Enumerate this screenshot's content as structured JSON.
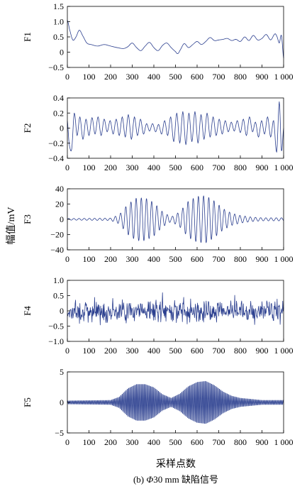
{
  "figure": {
    "caption_prefix": "(b) ",
    "caption_symbol": "Φ",
    "caption_rest": "30 mm 缺陷信号",
    "shared_ylabel": "幅值/mV",
    "shared_xlabel": "采样点数",
    "series_color": "#2b3f8f"
  },
  "chart_data": [
    {
      "type": "line",
      "panel_label": "F1",
      "xlim": [
        0,
        1000
      ],
      "ylim": [
        -0.5,
        1.5
      ],
      "xticks": [
        0,
        100,
        200,
        300,
        400,
        500,
        600,
        700,
        800,
        900,
        1000
      ],
      "xtick_labels": [
        "0",
        "100",
        "200",
        "300",
        "400",
        "500",
        "600",
        "700",
        "800",
        "900",
        "1 000"
      ],
      "yticks": [
        -0.5,
        0,
        0.5,
        1.0,
        1.5
      ],
      "ytick_labels": [
        "−0.5",
        "0",
        "0.5",
        "1.0",
        "1.5"
      ],
      "x": [
        0,
        10,
        25,
        40,
        55,
        70,
        90,
        110,
        140,
        170,
        200,
        230,
        260,
        280,
        300,
        320,
        340,
        360,
        380,
        400,
        420,
        440,
        460,
        480,
        500,
        510,
        520,
        540,
        560,
        580,
        600,
        620,
        640,
        660,
        680,
        700,
        720,
        740,
        760,
        780,
        800,
        820,
        840,
        860,
        880,
        900,
        920,
        940,
        960,
        970,
        980,
        990,
        1000
      ],
      "y": [
        1.05,
        0.75,
        0.4,
        0.5,
        0.72,
        0.55,
        0.3,
        0.25,
        0.2,
        0.25,
        0.2,
        0.15,
        0.12,
        0.18,
        0.3,
        0.15,
        0.05,
        0.2,
        0.32,
        0.15,
        0.05,
        0.22,
        0.3,
        0.15,
        0.02,
        -0.05,
        0.05,
        0.28,
        0.15,
        0.25,
        0.35,
        0.25,
        0.35,
        0.48,
        0.38,
        0.4,
        0.42,
        0.45,
        0.38,
        0.42,
        0.35,
        0.5,
        0.38,
        0.55,
        0.4,
        0.45,
        0.58,
        0.4,
        0.6,
        0.5,
        0.3,
        0.55,
        -0.2
      ]
    },
    {
      "type": "line",
      "panel_label": "F2",
      "xlim": [
        0,
        1000
      ],
      "ylim": [
        -0.4,
        0.4
      ],
      "xticks": [
        0,
        100,
        200,
        300,
        400,
        500,
        600,
        700,
        800,
        900,
        1000
      ],
      "xtick_labels": [
        "0",
        "100",
        "200",
        "300",
        "400",
        "500",
        "600",
        "700",
        "800",
        "900",
        "1 000"
      ],
      "yticks": [
        -0.4,
        -0.2,
        0,
        0.2,
        0.4
      ],
      "ytick_labels": [
        "−0.4",
        "−0.2",
        "0",
        "0.2",
        "0.4"
      ],
      "x": [
        0,
        8,
        20,
        32,
        45,
        58,
        72,
        86,
        100,
        114,
        128,
        142,
        156,
        170,
        184,
        198,
        212,
        226,
        240,
        254,
        268,
        282,
        296,
        310,
        324,
        338,
        352,
        366,
        380,
        394,
        408,
        422,
        436,
        450,
        464,
        478,
        492,
        506,
        520,
        534,
        548,
        562,
        576,
        590,
        604,
        618,
        632,
        646,
        660,
        674,
        688,
        702,
        716,
        730,
        744,
        758,
        772,
        786,
        800,
        814,
        828,
        842,
        856,
        870,
        884,
        898,
        912,
        926,
        940,
        954,
        968,
        980,
        990,
        1000
      ],
      "y": [
        0.1,
        -0.2,
        -0.28,
        0.2,
        -0.1,
        0.15,
        -0.15,
        0.12,
        -0.1,
        0.14,
        -0.08,
        0.15,
        -0.1,
        0.12,
        -0.05,
        0.1,
        -0.08,
        0.12,
        -0.1,
        0.15,
        -0.12,
        0.18,
        -0.15,
        0.15,
        -0.1,
        0.12,
        -0.08,
        0.06,
        -0.04,
        0.06,
        -0.05,
        0.05,
        -0.08,
        0.1,
        -0.1,
        0.15,
        -0.18,
        0.2,
        -0.2,
        0.22,
        -0.22,
        0.2,
        -0.18,
        0.22,
        -0.2,
        0.18,
        -0.15,
        0.2,
        -0.12,
        0.15,
        -0.1,
        0.12,
        -0.08,
        0.1,
        -0.05,
        0.08,
        -0.04,
        0.1,
        -0.06,
        0.12,
        -0.1,
        0.15,
        -0.05,
        0.08,
        -0.12,
        0.1,
        -0.08,
        0.15,
        -0.12,
        0.1,
        -0.32,
        0.35,
        -0.3,
        0.0
      ]
    },
    {
      "type": "line",
      "panel_label": "F3",
      "xlim": [
        0,
        1000
      ],
      "ylim": [
        -40,
        40
      ],
      "xticks": [
        0,
        100,
        200,
        300,
        400,
        500,
        600,
        700,
        800,
        900,
        1000
      ],
      "xtick_labels": [
        "0",
        "100",
        "200",
        "300",
        "400",
        "500",
        "600",
        "700",
        "800",
        "900",
        "1 000"
      ],
      "yticks": [
        -40,
        -20,
        0,
        20,
        40
      ],
      "ytick_labels": [
        "−40",
        "−20",
        "0",
        "20",
        "40"
      ],
      "envelope_x": [
        0,
        200,
        240,
        280,
        320,
        360,
        400,
        440,
        480,
        520,
        560,
        600,
        640,
        680,
        720,
        760,
        800,
        850,
        900,
        1000
      ],
      "envelope_y": [
        1,
        1.5,
        6,
        20,
        28,
        28,
        22,
        10,
        3,
        10,
        24,
        30,
        31,
        24,
        14,
        8,
        5,
        3,
        2,
        2
      ],
      "oscillation_period": 24
    },
    {
      "type": "line",
      "panel_label": "F4",
      "xlim": [
        0,
        1000
      ],
      "ylim": [
        -1.0,
        1.0
      ],
      "xticks": [
        0,
        100,
        200,
        300,
        400,
        500,
        600,
        700,
        800,
        900,
        1000
      ],
      "xtick_labels": [
        "0",
        "100",
        "200",
        "300",
        "400",
        "500",
        "600",
        "700",
        "800",
        "900",
        "1 000"
      ],
      "yticks": [
        -1.0,
        -0.5,
        0,
        0.5,
        1.0
      ],
      "ytick_labels": [
        "−1.0",
        "−0.5",
        "0",
        "0.5",
        "1.0"
      ],
      "noise_amplitude": 0.32,
      "noise_peak": 0.6
    },
    {
      "type": "line",
      "panel_label": "F5",
      "xlim": [
        0,
        1000
      ],
      "ylim": [
        -5,
        5
      ],
      "xticks": [
        0,
        100,
        200,
        300,
        400,
        500,
        600,
        700,
        800,
        900,
        1000
      ],
      "xtick_labels": [
        "0",
        "100",
        "200",
        "300",
        "400",
        "500",
        "600",
        "700",
        "800",
        "900",
        "1 000"
      ],
      "yticks": [
        -5,
        0,
        5
      ],
      "ytick_labels": [
        "−5",
        "0",
        "5"
      ],
      "envelope_x": [
        0,
        200,
        240,
        280,
        320,
        360,
        400,
        440,
        480,
        520,
        560,
        600,
        640,
        680,
        720,
        760,
        800,
        850,
        900,
        1000
      ],
      "envelope_y": [
        0.3,
        0.4,
        1.0,
        2.6,
        3.4,
        3.4,
        2.8,
        1.5,
        0.8,
        1.6,
        3.0,
        3.8,
        4.0,
        3.2,
        2.0,
        1.2,
        0.8,
        0.6,
        0.4,
        0.4
      ],
      "oscillation_period": 6
    }
  ]
}
